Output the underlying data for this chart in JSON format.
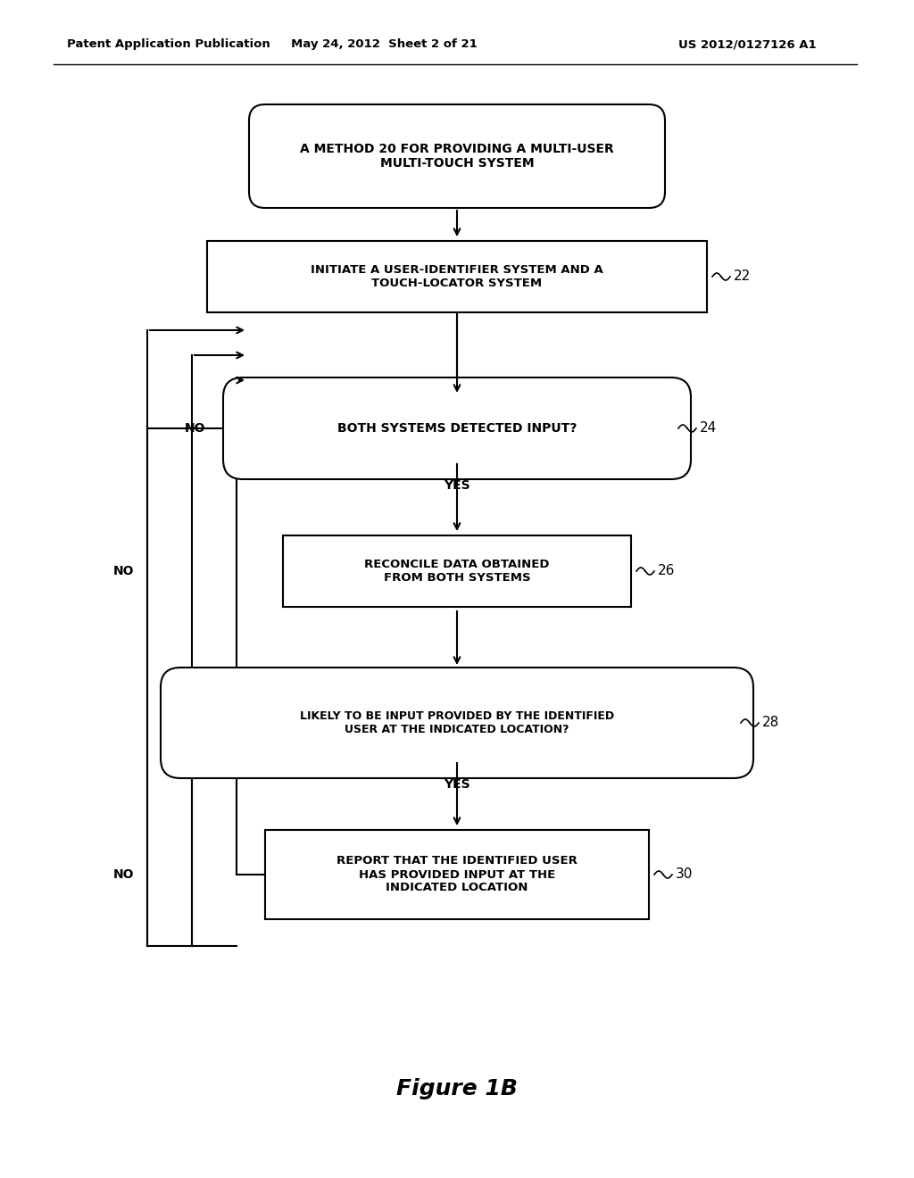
{
  "header_left": "Patent Application Publication",
  "header_mid": "May 24, 2012  Sheet 2 of 21",
  "header_right": "US 2012/0127126 A1",
  "figure_label": "Figure 1B",
  "bg_color": "#ffffff",
  "line_color": "#000000",
  "text_color": "#000000",
  "font_size_header": 9.5,
  "font_size_box": 9,
  "font_size_figure": 18
}
